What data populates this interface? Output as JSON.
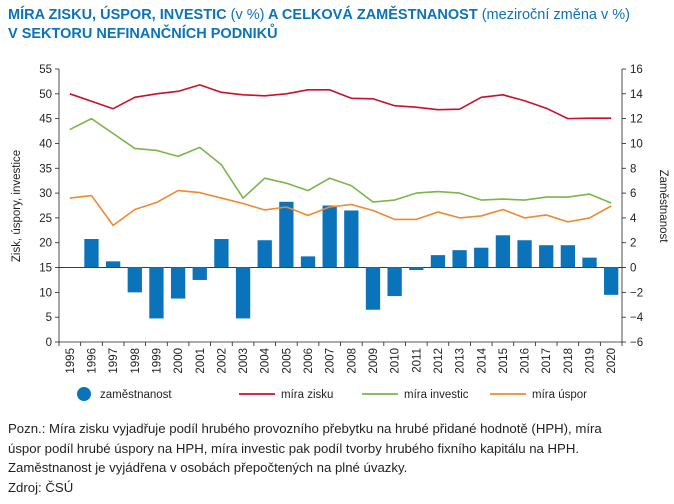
{
  "header": {
    "title_main": "MÍRA ZISKU, ÚSPOR, INVESTIC",
    "title_unit": "(v %)",
    "title_rest": "A CELKOVÁ ZAMĚSTNANOST",
    "title_unit2": "(meziroční změna v %)",
    "title_line2": "V SEKTORU NEFINANČNÍCH PODNIKŮ"
  },
  "chart_data": {
    "type": "bar+line",
    "categories": [
      "1995",
      "1996",
      "1997",
      "1998",
      "1999",
      "2000",
      "2001",
      "2002",
      "2003",
      "2004",
      "2005",
      "2006",
      "2007",
      "2008",
      "2009",
      "2010",
      "2011",
      "2012",
      "2013",
      "2014",
      "2015",
      "2016",
      "2017",
      "2018",
      "2019",
      "2020"
    ],
    "left_axis": {
      "label": "Zisk, úspory, investice",
      "min": 0,
      "max": 55,
      "ticks": [
        "0",
        "5",
        "10",
        "15",
        "20",
        "25",
        "30",
        "35",
        "40",
        "45",
        "50",
        "55"
      ]
    },
    "right_axis": {
      "label": "Zaměstnanost",
      "min": -6,
      "max": 16,
      "ticks": [
        "−6",
        "−4",
        "−2",
        "0",
        "2",
        "4",
        "6",
        "8",
        "10",
        "12",
        "14",
        "16"
      ]
    },
    "series": [
      {
        "name": "zaměstnanost",
        "kind": "bar",
        "axis": "right",
        "color": "#0b73b9",
        "values": [
          null,
          2.3,
          0.5,
          -2.0,
          -4.1,
          -2.5,
          -1.0,
          2.3,
          -4.1,
          2.2,
          5.3,
          0.9,
          5.0,
          4.6,
          -3.4,
          -2.3,
          -0.2,
          1.0,
          1.4,
          1.6,
          2.6,
          2.2,
          1.8,
          1.8,
          0.8,
          -2.2
        ]
      },
      {
        "name": "míra zisku",
        "kind": "line",
        "axis": "left",
        "color": "#c8102e",
        "values": [
          50.0,
          48.5,
          47.0,
          49.3,
          50.0,
          50.5,
          51.8,
          50.3,
          49.8,
          49.6,
          50.0,
          50.8,
          50.8,
          49.1,
          49.0,
          47.6,
          47.3,
          46.8,
          46.9,
          49.3,
          49.8,
          48.6,
          47.1,
          45.0,
          45.1,
          45.1
        ]
      },
      {
        "name": "míra investic",
        "kind": "line",
        "axis": "left",
        "color": "#7ab648",
        "values": [
          42.8,
          45.0,
          42.0,
          39.0,
          38.6,
          37.4,
          39.2,
          35.7,
          29.0,
          33.0,
          32.0,
          30.5,
          33.0,
          31.5,
          28.2,
          28.6,
          30.0,
          30.3,
          30.0,
          28.6,
          28.8,
          28.6,
          29.2,
          29.2,
          29.8,
          28.0
        ]
      },
      {
        "name": "míra úspor",
        "kind": "line",
        "axis": "left",
        "color": "#f0892f",
        "values": [
          29.0,
          29.5,
          23.5,
          26.7,
          28.1,
          30.5,
          30.1,
          29.0,
          27.9,
          26.6,
          27.2,
          25.5,
          27.2,
          27.7,
          26.5,
          24.7,
          24.7,
          26.2,
          25.0,
          25.4,
          26.7,
          25.0,
          25.6,
          24.2,
          25.0,
          27.4
        ]
      }
    ],
    "legend_position": "bottom",
    "grid": false
  },
  "notes": {
    "line1": "Pozn.: Míra zisku vyjadřuje podíl hrubého provozního přebytku na hrubé přidané hodnotě (HPH), míra",
    "line2": "úspor podíl hrubé úspory na HPH, míra investic pak podíl tvorby hrubého fixního kapitálu na HPH.",
    "line3": "Zaměstnanost je vyjádřena v osobách přepočtených na plné úvazky.",
    "source": "Zdroj: ČSÚ"
  }
}
